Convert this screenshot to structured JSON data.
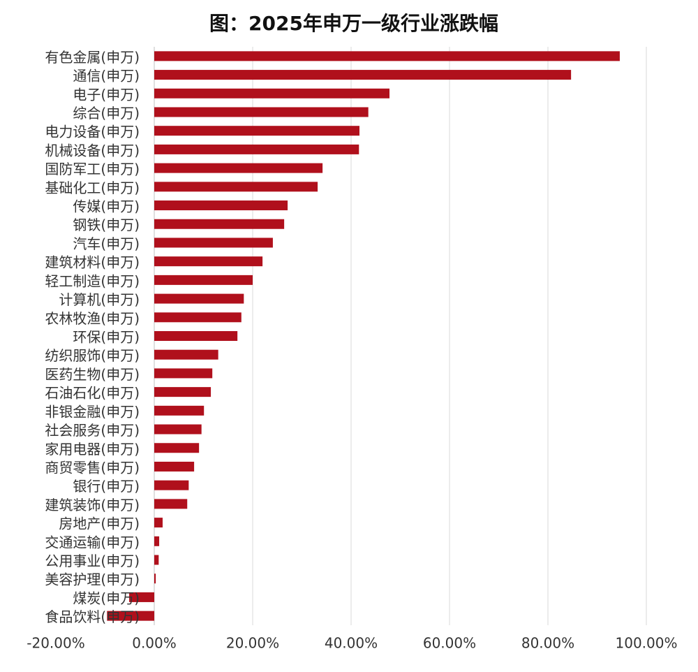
{
  "chart_data": {
    "type": "barh",
    "title": "图：2025年申万一级行业涨跌幅",
    "categories": [
      "有色金属(申万)",
      "通信(申万)",
      "电子(申万)",
      "综合(申万)",
      "电力设备(申万)",
      "机械设备(申万)",
      "国防军工(申万)",
      "基础化工(申万)",
      "传媒(申万)",
      "钢铁(申万)",
      "汽车(申万)",
      "建筑材料(申万)",
      "轻工制造(申万)",
      "计算机(申万)",
      "农林牧渔(申万)",
      "环保(申万)",
      "纺织服饰(申万)",
      "医药生物(申万)",
      "石油石化(申万)",
      "非银金融(申万)",
      "社会服务(申万)",
      "家用电器(申万)",
      "商贸零售(申万)",
      "银行(申万)",
      "建筑装饰(申万)",
      "房地产(申万)",
      "交通运输(申万)",
      "公用事业(申万)",
      "美容护理(申万)",
      "煤炭(申万)",
      "食品饮料(申万)"
    ],
    "values": [
      94.6,
      84.7,
      47.8,
      43.5,
      41.7,
      41.6,
      34.2,
      33.2,
      27.1,
      26.4,
      24.1,
      22.0,
      20.0,
      18.2,
      17.7,
      16.9,
      13.0,
      11.8,
      11.5,
      10.1,
      9.6,
      9.1,
      8.1,
      7.0,
      6.7,
      1.7,
      1.0,
      0.9,
      0.3,
      -5.1,
      -9.6
    ],
    "color": "#b0101c",
    "xlim": [
      -20,
      100
    ],
    "xticks": [
      {
        "value": -20,
        "label": "-20.00%"
      },
      {
        "value": 0,
        "label": "0.00%"
      },
      {
        "value": 20,
        "label": "20.00%"
      },
      {
        "value": 40,
        "label": "40.00%"
      },
      {
        "value": 60,
        "label": "60.00%"
      },
      {
        "value": 80,
        "label": "80.00%"
      },
      {
        "value": 100,
        "label": "100.00%"
      }
    ],
    "grid": true
  }
}
